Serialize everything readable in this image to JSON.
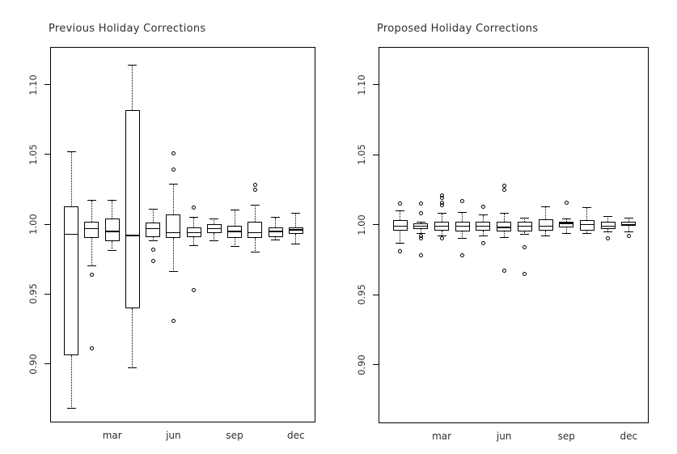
{
  "colors": {
    "line": "#000000",
    "text": "#2e2e2e",
    "background": "#ffffff"
  },
  "chart_data": [
    {
      "type": "boxplot",
      "title": "Previous Holiday Corrections",
      "categories": [
        "jan",
        "feb",
        "mar",
        "apr",
        "may",
        "jun",
        "jul",
        "aug",
        "sep",
        "oct",
        "nov",
        "dec"
      ],
      "x_tick_labels": [
        "mar",
        "jun",
        "sep",
        "dec"
      ],
      "x_tick_months": [
        3,
        6,
        9,
        12
      ],
      "y_tick_values": [
        0.9,
        0.95,
        1.0,
        1.05,
        1.1
      ],
      "y_tick_labels": [
        "0.90",
        "0.95",
        "1.00",
        "1.05",
        "1.10"
      ],
      "ylim": [
        0.8575,
        1.1265
      ],
      "grid": false,
      "boxes": [
        {
          "month": "jan",
          "whisker_low": 0.868,
          "q1": 0.906,
          "median": 0.993,
          "q3": 1.013,
          "whisker_high": 1.052,
          "outliers": []
        },
        {
          "month": "feb",
          "whisker_low": 0.97,
          "q1": 0.99,
          "median": 0.997,
          "q3": 1.002,
          "whisker_high": 1.017,
          "outliers": [
            0.964,
            0.911
          ]
        },
        {
          "month": "mar",
          "whisker_low": 0.981,
          "q1": 0.988,
          "median": 0.995,
          "q3": 1.004,
          "whisker_high": 1.017,
          "outliers": []
        },
        {
          "month": "apr",
          "whisker_low": 0.897,
          "q1": 0.94,
          "median": 0.992,
          "q3": 1.082,
          "whisker_high": 1.114,
          "outliers": []
        },
        {
          "month": "may",
          "whisker_low": 0.988,
          "q1": 0.991,
          "median": 0.997,
          "q3": 1.001,
          "whisker_high": 1.011,
          "outliers": [
            0.982,
            0.974
          ]
        },
        {
          "month": "jun",
          "whisker_low": 0.966,
          "q1": 0.99,
          "median": 0.994,
          "q3": 1.007,
          "whisker_high": 1.029,
          "outliers": [
            1.051,
            1.039,
            0.931
          ]
        },
        {
          "month": "jul",
          "whisker_low": 0.985,
          "q1": 0.991,
          "median": 0.994,
          "q3": 0.998,
          "whisker_high": 1.005,
          "outliers": [
            1.012,
            0.953
          ]
        },
        {
          "month": "aug",
          "whisker_low": 0.988,
          "q1": 0.994,
          "median": 0.997,
          "q3": 1.0,
          "whisker_high": 1.004,
          "outliers": []
        },
        {
          "month": "sep",
          "whisker_low": 0.984,
          "q1": 0.99,
          "median": 0.995,
          "q3": 0.999,
          "whisker_high": 1.01,
          "outliers": []
        },
        {
          "month": "oct",
          "whisker_low": 0.98,
          "q1": 0.99,
          "median": 0.994,
          "q3": 1.002,
          "whisker_high": 1.014,
          "outliers": [
            1.028,
            1.025
          ]
        },
        {
          "month": "nov",
          "whisker_low": 0.989,
          "q1": 0.991,
          "median": 0.995,
          "q3": 0.998,
          "whisker_high": 1.005,
          "outliers": []
        },
        {
          "month": "dec",
          "whisker_low": 0.986,
          "q1": 0.993,
          "median": 0.996,
          "q3": 0.998,
          "whisker_high": 1.008,
          "outliers": []
        }
      ]
    },
    {
      "type": "boxplot",
      "title": "Proposed Holiday Corrections",
      "categories": [
        "jan",
        "feb",
        "mar",
        "apr",
        "may",
        "jun",
        "jul",
        "aug",
        "sep",
        "oct",
        "nov",
        "dec"
      ],
      "x_tick_labels": [
        "mar",
        "jun",
        "sep",
        "dec"
      ],
      "x_tick_months": [
        3,
        6,
        9,
        12
      ],
      "y_tick_values": [
        0.9,
        0.95,
        1.0,
        1.05,
        1.1
      ],
      "y_tick_labels": [
        "0.90",
        "0.95",
        "1.00",
        "1.05",
        "1.10"
      ],
      "ylim": [
        0.8575,
        1.1265
      ],
      "grid": false,
      "boxes": [
        {
          "month": "jan",
          "whisker_low": 0.987,
          "q1": 0.996,
          "median": 0.999,
          "q3": 1.003,
          "whisker_high": 1.01,
          "outliers": [
            1.015,
            0.981
          ]
        },
        {
          "month": "feb",
          "whisker_low": 0.994,
          "q1": 0.997,
          "median": 0.999,
          "q3": 1.001,
          "whisker_high": 1.002,
          "outliers": [
            1.015,
            1.008,
            0.992,
            0.99,
            0.978
          ]
        },
        {
          "month": "mar",
          "whisker_low": 0.992,
          "q1": 0.996,
          "median": 0.999,
          "q3": 1.002,
          "whisker_high": 1.008,
          "outliers": [
            1.021,
            1.019,
            1.016,
            1.014,
            0.99
          ]
        },
        {
          "month": "apr",
          "whisker_low": 0.99,
          "q1": 0.995,
          "median": 0.999,
          "q3": 1.002,
          "whisker_high": 1.009,
          "outliers": [
            1.017,
            0.978
          ]
        },
        {
          "month": "may",
          "whisker_low": 0.992,
          "q1": 0.996,
          "median": 0.999,
          "q3": 1.002,
          "whisker_high": 1.007,
          "outliers": [
            1.013,
            0.987
          ]
        },
        {
          "month": "jun",
          "whisker_low": 0.991,
          "q1": 0.995,
          "median": 0.998,
          "q3": 1.002,
          "whisker_high": 1.008,
          "outliers": [
            1.028,
            1.025,
            0.967
          ]
        },
        {
          "month": "jul",
          "whisker_low": 0.993,
          "q1": 0.995,
          "median": 0.999,
          "q3": 1.002,
          "whisker_high": 1.005,
          "outliers": [
            0.984,
            0.965
          ]
        },
        {
          "month": "aug",
          "whisker_low": 0.992,
          "q1": 0.996,
          "median": 0.999,
          "q3": 1.004,
          "whisker_high": 1.013,
          "outliers": []
        },
        {
          "month": "sep",
          "whisker_low": 0.994,
          "q1": 0.998,
          "median": 1.001,
          "q3": 1.002,
          "whisker_high": 1.004,
          "outliers": [
            1.016
          ]
        },
        {
          "month": "oct",
          "whisker_low": 0.994,
          "q1": 0.996,
          "median": 1.0,
          "q3": 1.003,
          "whisker_high": 1.012,
          "outliers": []
        },
        {
          "month": "nov",
          "whisker_low": 0.995,
          "q1": 0.997,
          "median": 0.999,
          "q3": 1.002,
          "whisker_high": 1.006,
          "outliers": [
            0.99
          ]
        },
        {
          "month": "dec",
          "whisker_low": 0.995,
          "q1": 0.999,
          "median": 1.0,
          "q3": 1.002,
          "whisker_high": 1.005,
          "outliers": [
            0.992
          ]
        }
      ]
    }
  ]
}
